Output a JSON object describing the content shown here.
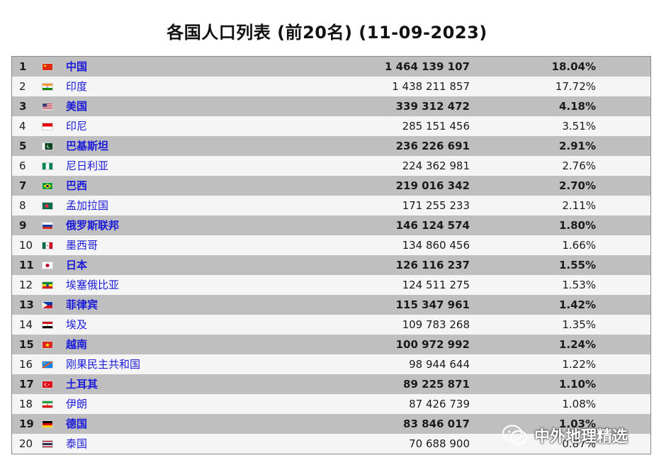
{
  "title": "各国人口列表 (前20名) (11-09-2023)",
  "rows": [
    {
      "rank": "1",
      "country": "中国",
      "population": "1 464 139 107",
      "share": "18.04%",
      "flag": "flag-china"
    },
    {
      "rank": "2",
      "country": "印度",
      "population": "1 438 211 857",
      "share": "17.72%",
      "flag": "flag-india"
    },
    {
      "rank": "3",
      "country": "美国",
      "population": "339 312 472",
      "share": "4.18%",
      "flag": "flag-usa"
    },
    {
      "rank": "4",
      "country": "印尼",
      "population": "285 151 456",
      "share": "3.51%",
      "flag": "flag-indonesia"
    },
    {
      "rank": "5",
      "country": "巴基斯坦",
      "population": "236 226 691",
      "share": "2.91%",
      "flag": "flag-pakistan"
    },
    {
      "rank": "6",
      "country": "尼日利亚",
      "population": "224 362 981",
      "share": "2.76%",
      "flag": "flag-nigeria"
    },
    {
      "rank": "7",
      "country": "巴西",
      "population": "219 016 342",
      "share": "2.70%",
      "flag": "flag-brazil"
    },
    {
      "rank": "8",
      "country": "孟加拉国",
      "population": "171 255 233",
      "share": "2.11%",
      "flag": "flag-bangladesh"
    },
    {
      "rank": "9",
      "country": "俄罗斯联邦",
      "population": "146 124 574",
      "share": "1.80%",
      "flag": "flag-russia"
    },
    {
      "rank": "10",
      "country": "墨西哥",
      "population": "134 860 456",
      "share": "1.66%",
      "flag": "flag-mexico"
    },
    {
      "rank": "11",
      "country": "日本",
      "population": "126 116 237",
      "share": "1.55%",
      "flag": "flag-japan"
    },
    {
      "rank": "12",
      "country": "埃塞俄比亚",
      "population": "124 511 275",
      "share": "1.53%",
      "flag": "flag-ethiopia"
    },
    {
      "rank": "13",
      "country": "菲律宾",
      "population": "115 347 961",
      "share": "1.42%",
      "flag": "flag-philippines"
    },
    {
      "rank": "14",
      "country": "埃及",
      "population": "109 783 268",
      "share": "1.35%",
      "flag": "flag-egypt"
    },
    {
      "rank": "15",
      "country": "越南",
      "population": "100 972 992",
      "share": "1.24%",
      "flag": "flag-vietnam"
    },
    {
      "rank": "16",
      "country": "刚果民主共和国",
      "population": "98 944 644",
      "share": "1.22%",
      "flag": "flag-drcongo"
    },
    {
      "rank": "17",
      "country": "土耳其",
      "population": "89 225 871",
      "share": "1.10%",
      "flag": "flag-turkey"
    },
    {
      "rank": "18",
      "country": "伊朗",
      "population": "87 426 739",
      "share": "1.08%",
      "flag": "flag-iran"
    },
    {
      "rank": "19",
      "country": "德国",
      "population": "83 846 017",
      "share": "1.03%",
      "flag": "flag-germany"
    },
    {
      "rank": "20",
      "country": "泰国",
      "population": "70 688 900",
      "share": "0.87%",
      "flag": "flag-thailand"
    }
  ],
  "watermark": {
    "text": "中外地理精选",
    "icon": "wechat-icon"
  },
  "colors": {
    "link": "#1a1ad8",
    "odd_row": "#bfbfbf",
    "even_row": "#f5f5f5"
  }
}
